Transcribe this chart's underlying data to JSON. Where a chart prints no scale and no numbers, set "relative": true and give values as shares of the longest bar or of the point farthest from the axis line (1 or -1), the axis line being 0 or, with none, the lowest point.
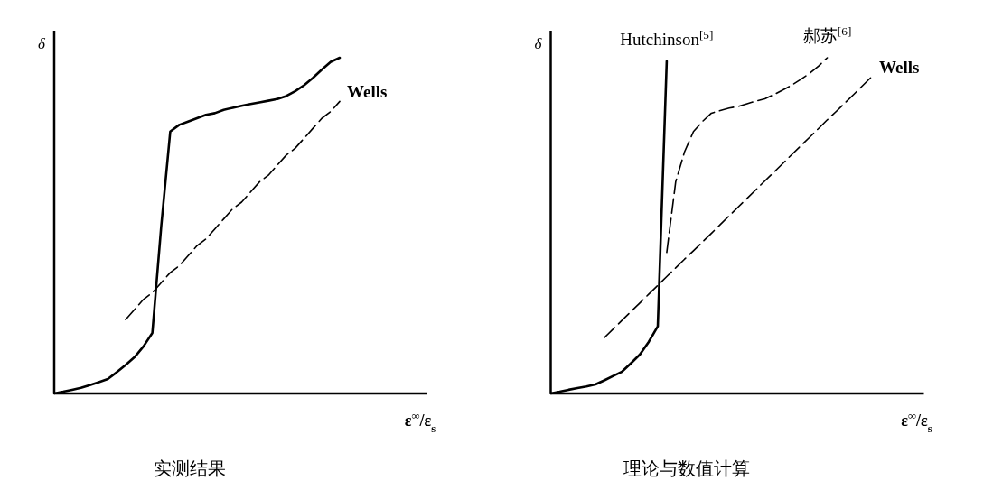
{
  "chart_data": [
    {
      "type": "line",
      "relative": true,
      "title": "实测结果",
      "xlabel": "ε$^{∞}$/ε$_{s}$",
      "ylabel": "δ",
      "categories": [
        null,
        null,
        null,
        null,
        null,
        null,
        null,
        null,
        null,
        null,
        null,
        null,
        null,
        null,
        null,
        null,
        null,
        null,
        null,
        null,
        null,
        null,
        null,
        null,
        null,
        null,
        null,
        null,
        null,
        null,
        null,
        null,
        null,
        null,
        null,
        null,
        null,
        null,
        null,
        null,
        null
      ],
      "series": [
        {
          "color": "#000000",
          "line_style": "solid",
          "values": [
            0,
            0.005,
            0.011,
            0.017,
            0.025,
            0.034,
            0.043,
            0.063,
            0.085,
            0.108,
            0.14,
            0.18,
            0.5,
            0.78,
            0.8,
            0.81,
            0.82,
            0.83,
            0.835,
            0.845,
            0.851,
            0.857,
            0.862,
            0.867,
            0.872,
            0.877,
            0.886,
            0.9,
            0.918,
            0.94,
            0.965,
            0.988,
            1.0,
            null,
            null,
            null,
            null,
            null,
            null,
            null,
            null
          ]
        },
        {
          "name": "Wells",
          "color": "#000000",
          "line_style": "dashed",
          "values": [
            null,
            null,
            null,
            null,
            null,
            null,
            null,
            null,
            0.22,
            0.25,
            0.28,
            0.3,
            0.33,
            0.36,
            0.38,
            0.41,
            0.44,
            0.46,
            0.49,
            0.52,
            0.55,
            0.57,
            0.6,
            0.63,
            0.65,
            0.68,
            0.71,
            0.73,
            0.76,
            0.79,
            0.82,
            0.84,
            0.87,
            null,
            null,
            null,
            null,
            null,
            null,
            null,
            null
          ]
        }
      ]
    },
    {
      "type": "line",
      "relative": true,
      "title": "理论与数值计算",
      "xlabel": "ε$^{∞}$/ε$_{s}$",
      "ylabel": "δ",
      "categories": [
        null,
        null,
        null,
        null,
        null,
        null,
        null,
        null,
        null,
        null,
        null,
        null,
        null,
        null,
        null,
        null,
        null,
        null,
        null,
        null,
        null,
        null,
        null,
        null,
        null,
        null,
        null,
        null,
        null,
        null,
        null,
        null,
        null,
        null,
        null,
        null,
        null,
        null,
        null,
        null,
        null
      ],
      "series": [
        {
          "name": "Hutchinson$^{[5]}$",
          "color": "#000000",
          "line_style": "solid",
          "values": [
            0,
            0.005,
            0.011,
            0.016,
            0.021,
            0.027,
            0.039,
            0.052,
            0.065,
            0.09,
            0.116,
            0.154,
            0.2,
            0.99,
            null,
            null,
            null,
            null,
            null,
            null,
            null,
            null,
            null,
            null,
            null,
            null,
            null,
            null,
            null,
            null,
            null,
            null,
            null,
            null,
            null,
            null,
            null,
            null,
            null,
            null,
            null
          ]
        },
        {
          "name": "郝苏$^{[6]}$",
          "color": "#000000",
          "line_style": "dashed",
          "values": [
            null,
            null,
            null,
            null,
            null,
            null,
            null,
            null,
            null,
            null,
            null,
            null,
            null,
            0.42,
            0.63,
            0.72,
            0.78,
            0.81,
            0.835,
            0.843,
            0.85,
            0.855,
            0.863,
            0.871,
            0.878,
            0.89,
            0.904,
            0.918,
            0.935,
            0.953,
            0.975,
            1.0,
            null,
            null,
            null,
            null,
            null,
            null,
            null,
            null,
            null
          ]
        },
        {
          "name": "Wells",
          "color": "#000000",
          "line_style": "dashed",
          "values": [
            null,
            null,
            null,
            null,
            null,
            null,
            0.166,
            0.192,
            0.218,
            0.244,
            0.27,
            0.296,
            0.322,
            0.348,
            0.374,
            0.4,
            0.425,
            0.451,
            0.477,
            0.503,
            0.529,
            0.555,
            0.581,
            0.607,
            0.633,
            0.659,
            0.685,
            0.711,
            0.737,
            0.763,
            0.789,
            0.815,
            0.84,
            0.866,
            0.892,
            0.918,
            0.944,
            null,
            null,
            null,
            null
          ]
        }
      ]
    }
  ]
}
